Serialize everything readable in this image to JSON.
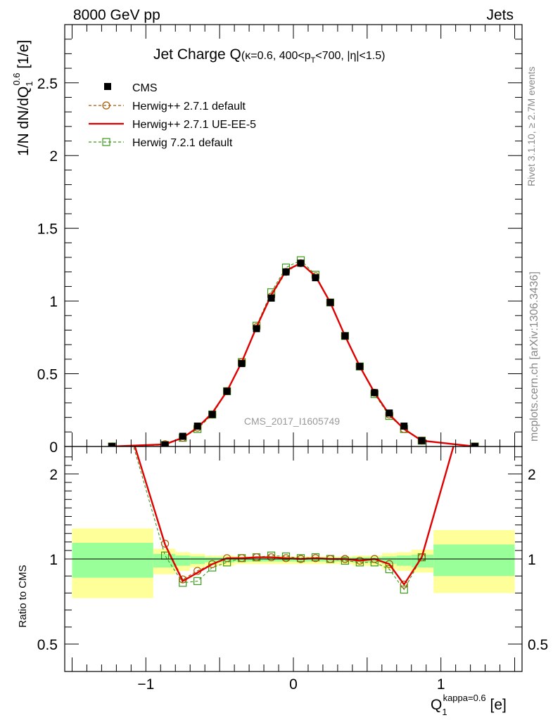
{
  "header": {
    "left": "8000 GeV pp",
    "right": "Jets"
  },
  "title": {
    "main": "Jet Charge Q",
    "sub": "(κ=0.6, 400<p",
    "sub_T": "T",
    "sub_rest": "<700, |η|<1.5)"
  },
  "side_labels": {
    "rivet": "Rivet 3.1.10, ≥ 2.7M events",
    "mcplots": "mcplots.cern.ch [arXiv:1306.3436]"
  },
  "watermark": "CMS_2017_I1605749",
  "ylabel_main": {
    "prefix": "1/N dN/dQ",
    "sub": "1",
    "sup": "0.6",
    "unit": " [1/e]"
  },
  "ylabel_ratio": "Ratio to CMS",
  "xlabel": {
    "base": "Q",
    "sub": "1",
    "sup": "kappa=0.6",
    "unit": " [e]"
  },
  "colors": {
    "cms": "#000000",
    "herwig_default": "#a65a00",
    "herwig_ueee5": "#e00000",
    "herwig72": "#3a9a1a",
    "band_green": "#99ff99",
    "band_yellow": "#ffff99"
  },
  "chart_data": [
    {
      "type": "line",
      "panel": "main",
      "xlim": [
        -1.55,
        1.55
      ],
      "ylim": [
        0,
        2.9
      ],
      "yticks": [
        0,
        0.5,
        1,
        1.5,
        2,
        2.5
      ],
      "ytick_labels": [
        "0",
        "0.5",
        "1",
        "1.5",
        "2",
        "2.5"
      ],
      "x": [
        -1.23,
        -0.87,
        -0.75,
        -0.65,
        -0.55,
        -0.45,
        -0.35,
        -0.25,
        -0.15,
        -0.05,
        0.05,
        0.15,
        0.25,
        0.35,
        0.45,
        0.55,
        0.65,
        0.75,
        0.87,
        1.23
      ],
      "series": [
        {
          "name": "CMS",
          "key": "cms",
          "style": "square-marker",
          "values": [
            0.0,
            0.01,
            0.07,
            0.14,
            0.22,
            0.38,
            0.57,
            0.81,
            1.02,
            1.2,
            1.26,
            1.16,
            0.99,
            0.76,
            0.55,
            0.37,
            0.23,
            0.14,
            0.04,
            0.0
          ]
        },
        {
          "name": "Herwig++ 2.7.1 default",
          "key": "herwig_default",
          "style": "dashed-circle",
          "values": [
            0.0,
            0.015,
            0.06,
            0.13,
            0.22,
            0.38,
            0.58,
            0.82,
            1.03,
            1.2,
            1.26,
            1.17,
            0.99,
            0.76,
            0.55,
            0.37,
            0.22,
            0.12,
            0.04,
            0.0
          ]
        },
        {
          "name": "Herwig++ 2.7.1 UE-EE-5",
          "key": "herwig_ueee5",
          "style": "solid-line",
          "values": [
            0.0,
            0.015,
            0.06,
            0.13,
            0.23,
            0.38,
            0.58,
            0.82,
            1.04,
            1.21,
            1.26,
            1.17,
            0.99,
            0.76,
            0.55,
            0.37,
            0.22,
            0.12,
            0.04,
            0.0
          ]
        },
        {
          "name": "Herwig 7.2.1 default",
          "key": "herwig72",
          "style": "dashed-square",
          "values": [
            0.0,
            0.01,
            0.06,
            0.12,
            0.22,
            0.38,
            0.58,
            0.83,
            1.06,
            1.23,
            1.28,
            1.18,
            0.99,
            0.76,
            0.55,
            0.36,
            0.21,
            0.12,
            0.04,
            0.0
          ]
        }
      ]
    },
    {
      "type": "line",
      "panel": "ratio",
      "xlim": [
        -1.55,
        1.55
      ],
      "ylim": [
        0.3,
        2.3
      ],
      "yticks": [
        0.5,
        1,
        2
      ],
      "ytick_labels": [
        "0.5",
        "1",
        "2"
      ],
      "xticks": [
        -1,
        0,
        1
      ],
      "xtick_labels": [
        "−1",
        "0",
        "1"
      ],
      "bins": [
        {
          "lo": -1.5,
          "hi": -0.95,
          "yellow": [
            0.77,
            1.36
          ],
          "green": [
            0.89,
            1.19
          ]
        },
        {
          "lo": -0.95,
          "hi": -0.8,
          "yellow": [
            0.91,
            1.12
          ],
          "green": [
            0.95,
            1.06
          ]
        },
        {
          "lo": -0.8,
          "hi": -0.7,
          "yellow": [
            0.93,
            1.08
          ],
          "green": [
            0.96,
            1.04
          ]
        },
        {
          "lo": -0.7,
          "hi": -0.6,
          "yellow": [
            0.95,
            1.06
          ],
          "green": [
            0.97,
            1.03
          ]
        },
        {
          "lo": -0.6,
          "hi": -0.4,
          "yellow": [
            0.96,
            1.04
          ],
          "green": [
            0.98,
            1.02
          ]
        },
        {
          "lo": -0.4,
          "hi": 0.4,
          "yellow": [
            0.97,
            1.03
          ],
          "green": [
            0.985,
            1.015
          ]
        },
        {
          "lo": 0.4,
          "hi": 0.6,
          "yellow": [
            0.96,
            1.04
          ],
          "green": [
            0.98,
            1.02
          ]
        },
        {
          "lo": 0.6,
          "hi": 0.7,
          "yellow": [
            0.94,
            1.07
          ],
          "green": [
            0.97,
            1.03
          ]
        },
        {
          "lo": 0.7,
          "hi": 0.8,
          "yellow": [
            0.93,
            1.08
          ],
          "green": [
            0.96,
            1.04
          ]
        },
        {
          "lo": 0.8,
          "hi": 0.95,
          "yellow": [
            0.92,
            1.11
          ],
          "green": [
            0.95,
            1.05
          ]
        },
        {
          "lo": 0.95,
          "hi": 1.5,
          "yellow": [
            0.8,
            1.34
          ],
          "green": [
            0.9,
            1.17
          ]
        }
      ],
      "x": [
        -1.23,
        -0.87,
        -0.75,
        -0.65,
        -0.55,
        -0.45,
        -0.35,
        -0.25,
        -0.15,
        -0.05,
        0.05,
        0.15,
        0.25,
        0.35,
        0.45,
        0.55,
        0.65,
        0.75,
        0.87,
        1.23
      ],
      "series": [
        {
          "name": "Herwig++ 2.7.1 default",
          "key": "herwig_default",
          "style": "dashed-circle",
          "values": [
            3.2,
            1.18,
            0.88,
            0.93,
            0.97,
            1.01,
            1.01,
            1.02,
            1.02,
            1.01,
            1.0,
            1.01,
            1.0,
            1.0,
            0.99,
            1.0,
            0.97,
            0.85,
            1.02,
            3.2
          ]
        },
        {
          "name": "Herwig++ 2.7.1 UE-EE-5",
          "key": "herwig_ueee5",
          "style": "solid-line",
          "values": [
            3.2,
            1.17,
            0.87,
            0.92,
            0.97,
            1.01,
            1.01,
            1.02,
            1.02,
            1.01,
            1.0,
            1.01,
            1.0,
            1.0,
            0.99,
            1.0,
            0.97,
            0.85,
            1.02,
            3.2
          ]
        },
        {
          "name": "Herwig 7.2.1 default",
          "key": "herwig72",
          "style": "dashed-square",
          "values": [
            3.2,
            1.04,
            0.86,
            0.87,
            0.95,
            0.98,
            1.01,
            1.02,
            1.04,
            1.03,
            1.01,
            1.02,
            1.0,
            0.99,
            0.98,
            0.98,
            0.94,
            0.82,
            1.02,
            3.2
          ]
        }
      ]
    }
  ]
}
